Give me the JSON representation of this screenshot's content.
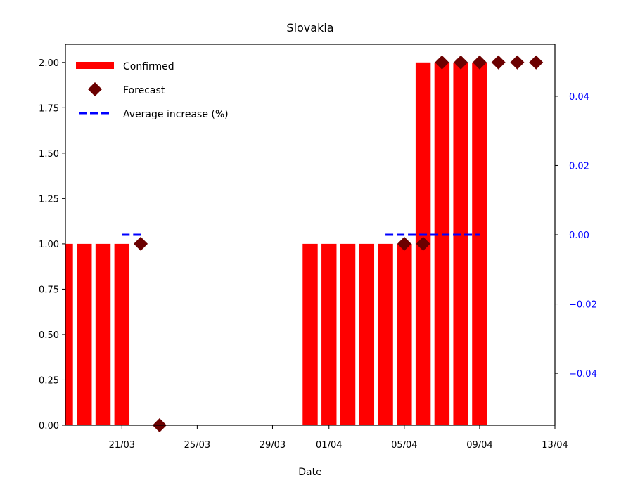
{
  "chart_data": {
    "type": "bar",
    "title": "Slovakia",
    "xlabel": "Date",
    "ylabel": "",
    "ylim": [
      0,
      2.1
    ],
    "y2lim": [
      -0.055,
      0.055
    ],
    "xlim": [
      "18/03",
      "13/04"
    ],
    "x_ticks": [
      "21/03",
      "25/03",
      "29/03",
      "01/04",
      "05/04",
      "09/04",
      "13/04"
    ],
    "y_ticks": [
      "0.00",
      "0.25",
      "0.50",
      "0.75",
      "1.00",
      "1.25",
      "1.50",
      "1.75",
      "2.00"
    ],
    "y2_ticks": [
      "−0.04",
      "−0.02",
      "0.00",
      "0.02",
      "0.04"
    ],
    "grid": false,
    "legend_position": "upper left",
    "colors": {
      "confirmed": "#ff0000",
      "forecast": "#6b0000",
      "average": "#0000ff",
      "right_axis": "#0000ff"
    },
    "series": [
      {
        "name": "Confirmed",
        "type": "bar",
        "x": [
          "18/03",
          "19/03",
          "20/03",
          "21/03",
          "31/03",
          "01/04",
          "02/04",
          "03/04",
          "04/04",
          "05/04",
          "06/04",
          "07/04",
          "08/04",
          "09/04"
        ],
        "values": [
          1,
          1,
          1,
          1,
          1,
          1,
          1,
          1,
          1,
          1,
          2,
          2,
          2,
          2
        ]
      },
      {
        "name": "Forecast",
        "type": "scatter",
        "x": [
          "22/03",
          "23/03",
          "05/04",
          "06/04",
          "07/04",
          "08/04",
          "09/04",
          "10/04",
          "11/04",
          "12/04"
        ],
        "values": [
          1,
          0,
          1,
          1,
          2,
          2,
          2,
          2,
          2,
          2
        ]
      },
      {
        "name": "Average increase (%)",
        "type": "line",
        "axis": "right",
        "segments": [
          {
            "x": [
              "21/03",
              "22/03"
            ],
            "values": [
              0,
              0
            ]
          },
          {
            "x": [
              "04/04",
              "09/04"
            ],
            "values": [
              0,
              0
            ]
          }
        ]
      }
    ]
  }
}
